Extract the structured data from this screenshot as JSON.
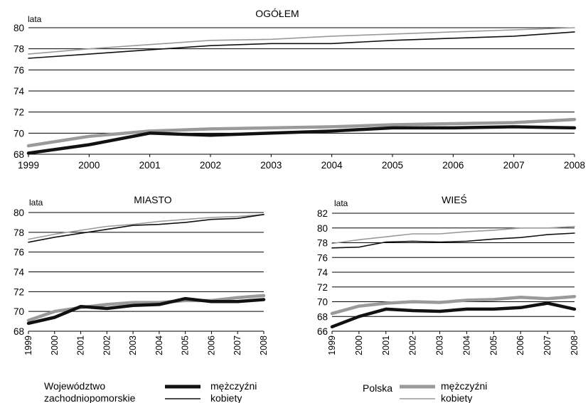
{
  "colors": {
    "woj_men": "#111111",
    "woj_women": "#111111",
    "pl_men": "#9a9a9a",
    "pl_women": "#9a9a9a",
    "grid": "#000000"
  },
  "chart_data": [
    {
      "type": "line",
      "title": "OGÓŁEM",
      "ylabel": "lata",
      "x": [
        "1999",
        "2000",
        "2001",
        "2002",
        "2003",
        "2004",
        "2005",
        "2006",
        "2007",
        "2008"
      ],
      "ylim": [
        68,
        80
      ],
      "yticks": [
        68,
        70,
        72,
        74,
        76,
        78,
        80
      ],
      "grid": true,
      "series": [
        {
          "key": "pl_women",
          "values": [
            77.5,
            78.0,
            78.4,
            78.8,
            78.9,
            79.2,
            79.4,
            79.6,
            79.8,
            80.0
          ]
        },
        {
          "key": "woj_women",
          "values": [
            77.1,
            77.5,
            77.9,
            78.3,
            78.5,
            78.5,
            78.8,
            79.0,
            79.2,
            79.6
          ]
        },
        {
          "key": "pl_men",
          "values": [
            68.8,
            69.7,
            70.2,
            70.4,
            70.5,
            70.6,
            70.8,
            70.9,
            71.0,
            71.3
          ]
        },
        {
          "key": "woj_men",
          "values": [
            68.1,
            68.9,
            70.0,
            69.8,
            70.0,
            70.2,
            70.5,
            70.5,
            70.6,
            70.5
          ]
        }
      ]
    },
    {
      "type": "line",
      "title": "MIASTO",
      "ylabel": "lata",
      "x": [
        "1999",
        "2000",
        "2001",
        "2002",
        "2003",
        "2004",
        "2005",
        "2006",
        "2007",
        "2008"
      ],
      "ylim": [
        68,
        80
      ],
      "yticks": [
        68,
        70,
        72,
        74,
        76,
        78,
        80
      ],
      "grid": true,
      "series": [
        {
          "key": "pl_women",
          "values": [
            77.3,
            77.8,
            78.2,
            78.6,
            78.8,
            79.1,
            79.3,
            79.5,
            79.6,
            79.8
          ]
        },
        {
          "key": "woj_women",
          "values": [
            77.0,
            77.5,
            77.9,
            78.3,
            78.7,
            78.8,
            79.0,
            79.3,
            79.4,
            79.8
          ]
        },
        {
          "key": "pl_men",
          "values": [
            69.1,
            70.0,
            70.4,
            70.7,
            70.9,
            70.9,
            71.1,
            71.1,
            71.4,
            71.6
          ]
        },
        {
          "key": "woj_men",
          "values": [
            68.8,
            69.4,
            70.5,
            70.3,
            70.6,
            70.7,
            71.3,
            71.0,
            71.0,
            71.2
          ]
        }
      ]
    },
    {
      "type": "line",
      "title": "WIEŚ",
      "ylabel": "lata",
      "x": [
        "1999",
        "2000",
        "2001",
        "2002",
        "2003",
        "2004",
        "2005",
        "2006",
        "2007",
        "2008"
      ],
      "ylim": [
        66,
        82
      ],
      "yticks": [
        66,
        68,
        70,
        72,
        74,
        76,
        78,
        80,
        82
      ],
      "grid": true,
      "series": [
        {
          "key": "pl_women",
          "values": [
            77.9,
            78.4,
            78.8,
            79.2,
            79.2,
            79.5,
            79.7,
            80.0,
            80.0,
            80.2
          ]
        },
        {
          "key": "woj_women",
          "values": [
            77.3,
            77.4,
            78.1,
            78.2,
            78.1,
            78.2,
            78.5,
            78.7,
            79.1,
            79.3
          ]
        },
        {
          "key": "pl_men",
          "values": [
            68.4,
            69.4,
            69.8,
            70.0,
            69.9,
            70.2,
            70.3,
            70.6,
            70.4,
            70.7
          ]
        },
        {
          "key": "woj_men",
          "values": [
            66.6,
            68.0,
            69.0,
            68.8,
            68.7,
            69.0,
            69.0,
            69.2,
            69.8,
            69.0
          ]
        }
      ]
    }
  ],
  "legend": {
    "woj_label_1": "Województwo",
    "woj_label_2": "zachodniopomorskie",
    "pl_label": "Polska",
    "men": "mężczyźni",
    "women": "kobiety"
  }
}
